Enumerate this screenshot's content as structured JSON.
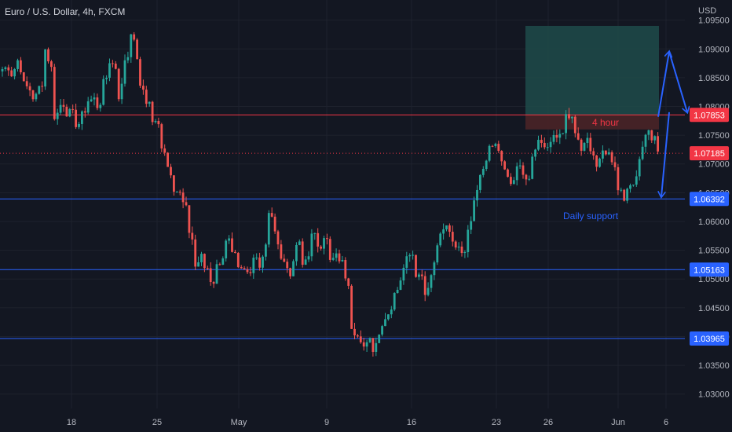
{
  "header": {
    "symbol_title": "Euro / U.S. Dollar, 4h, FXCM",
    "currency_unit": "USD"
  },
  "colors": {
    "background": "#131722",
    "grid": "#1e222d",
    "axis_text": "#b2b5be",
    "up": "#26a69a",
    "down": "#ef5350",
    "level_line": "#2962ff",
    "resistance_line": "#f23645",
    "arrow": "#2962ff",
    "target_zone": "#1f4b4a",
    "stop_zone": "#4a2427"
  },
  "chart_data": {
    "type": "candlestick",
    "title": "Euro / U.S. Dollar, 4h, FXCM",
    "ylim": [
      1.0275,
      1.0985
    ],
    "y_ticks": [
      "1.09500",
      "1.09000",
      "1.08500",
      "1.08000",
      "1.07500",
      "1.07000",
      "1.06500",
      "1.06000",
      "1.05500",
      "1.05000",
      "1.04500",
      "1.04000",
      "1.03500",
      "1.03000"
    ],
    "x_ticks": [
      "18",
      "25",
      "May",
      "9",
      "16",
      "23",
      "26",
      "Jun",
      "6"
    ],
    "grid": true,
    "price_path": [
      [
        1.0865,
        1.088
      ],
      [
        1.085,
        1.0865
      ],
      [
        1.0885,
        1.086
      ],
      [
        1.0838,
        1.0835
      ],
      [
        1.0815,
        1.0812
      ],
      [
        1.083,
        1.0822
      ],
      [
        1.09,
        1.0905
      ],
      [
        1.078,
        1.0785
      ],
      [
        1.0802,
        1.0815
      ],
      [
        1.079,
        1.0795
      ],
      [
        1.077,
        1.0765
      ],
      [
        1.078,
        1.08
      ],
      [
        1.081,
        1.0823
      ],
      [
        1.0795,
        1.08
      ],
      [
        1.0835,
        1.085
      ],
      [
        1.088,
        1.09
      ],
      [
        1.0805,
        1.0825
      ],
      [
        1.088,
        1.087
      ],
      [
        1.0935,
        1.091
      ],
      [
        1.083,
        1.084
      ],
      [
        1.081,
        1.082
      ],
      [
        1.0775,
        1.078
      ],
      [
        1.074,
        1.073
      ],
      [
        1.07,
        1.069
      ],
      [
        1.066,
        1.065
      ],
      [
        1.064,
        1.063
      ],
      [
        1.059,
        1.058
      ],
      [
        1.052,
        1.055
      ],
      [
        1.052,
        1.053
      ],
      [
        1.05,
        1.048
      ],
      [
        1.052,
        1.053
      ],
      [
        1.056,
        1.058
      ],
      [
        1.054,
        1.055
      ],
      [
        1.0515,
        1.052
      ],
      [
        1.0505,
        1.051
      ],
      [
        1.054,
        1.055
      ],
      [
        1.052,
        1.053
      ],
      [
        1.061,
        1.063
      ],
      [
        1.058,
        1.0575
      ],
      [
        1.054,
        1.053
      ],
      [
        1.05,
        1.051
      ],
      [
        1.056,
        1.058
      ],
      [
        1.052,
        1.053
      ],
      [
        1.0575,
        1.058
      ],
      [
        1.056,
        1.055
      ],
      [
        1.058,
        1.057
      ],
      [
        1.053,
        1.054
      ],
      [
        1.054,
        1.053
      ],
      [
        1.051,
        1.052
      ],
      [
        1.042,
        1.04
      ],
      [
        1.039,
        1.036
      ],
      [
        1.0395,
        1.041
      ],
      [
        1.038,
        1.04
      ],
      [
        1.042,
        1.0435
      ],
      [
        1.044,
        1.045
      ],
      [
        1.047,
        1.05
      ],
      [
        1.052,
        1.054
      ],
      [
        1.055,
        1.0555
      ],
      [
        1.051,
        1.052
      ],
      [
        1.048,
        1.047
      ],
      [
        1.05,
        1.053
      ],
      [
        1.056,
        1.058
      ],
      [
        1.0595,
        1.059
      ],
      [
        1.057,
        1.056
      ],
      [
        1.055,
        1.054
      ],
      [
        1.058,
        1.0595
      ],
      [
        1.064,
        1.065
      ],
      [
        1.068,
        1.07
      ],
      [
        1.072,
        1.073
      ],
      [
        1.074,
        1.0735
      ],
      [
        1.07,
        1.069
      ],
      [
        1.065,
        1.066
      ],
      [
        1.07,
        1.069
      ],
      [
        1.0675,
        1.066
      ],
      [
        1.07,
        1.072
      ],
      [
        1.0735,
        1.0745
      ],
      [
        1.072,
        1.0725
      ],
      [
        1.075,
        1.076
      ],
      [
        1.074,
        1.0745
      ],
      [
        1.0785,
        1.079
      ],
      [
        1.0755,
        1.075
      ],
      [
        1.072,
        1.073
      ],
      [
        1.0745,
        1.073
      ],
      [
        1.069,
        1.0695
      ],
      [
        1.072,
        1.0725
      ],
      [
        1.072,
        1.0725
      ],
      [
        1.065,
        1.067
      ],
      [
        1.064,
        1.065
      ],
      [
        1.066,
        1.067
      ],
      [
        1.07,
        1.072
      ],
      [
        1.0755,
        1.076
      ],
      [
        1.0745,
        1.075
      ],
      [
        1.072,
        1.0718
      ]
    ],
    "annotations": {
      "price_labels": [
        {
          "value": 1.07853,
          "text": "1.07853",
          "color": "#f23645"
        },
        {
          "value": 1.07185,
          "text": "1.07185",
          "color": "#f23645"
        },
        {
          "value": 1.06392,
          "text": "1.06392",
          "color": "#2962ff"
        },
        {
          "value": 1.05163,
          "text": "1.05163",
          "color": "#2962ff"
        },
        {
          "value": 1.03965,
          "text": "1.03965",
          "color": "#2962ff"
        }
      ],
      "horizontal_lines": [
        {
          "value": 1.07853,
          "color": "#f23645",
          "style": "solid"
        },
        {
          "value": 1.07185,
          "color": "#f23645",
          "style": "dotted"
        },
        {
          "value": 1.06392,
          "color": "#2962ff",
          "style": "solid"
        },
        {
          "value": 1.05163,
          "color": "#2962ff",
          "style": "solid"
        },
        {
          "value": 1.03965,
          "color": "#2962ff",
          "style": "solid"
        }
      ],
      "text_notes": [
        {
          "text": "4 hour",
          "color": "#f23645"
        },
        {
          "text": "Daily support",
          "color": "#2962ff"
        }
      ],
      "position_box": {
        "entry": 1.0785,
        "target": 1.094,
        "stop": 1.076
      },
      "arrows": [
        {
          "from": 1.0782,
          "to": 1.0895
        },
        {
          "from": 1.0895,
          "to": 1.079
        },
        {
          "from": 1.079,
          "to": 1.0643
        }
      ]
    }
  }
}
